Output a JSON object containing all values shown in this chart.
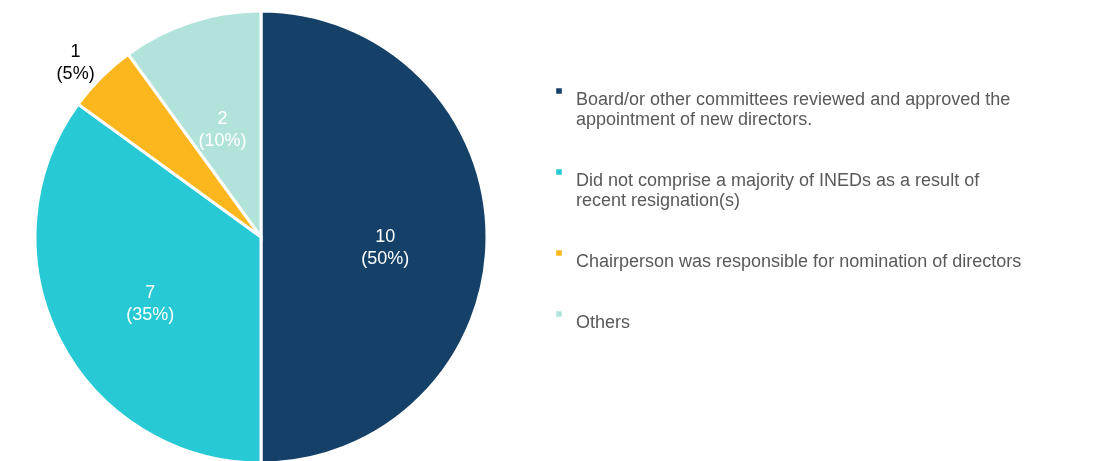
{
  "chart_data": {
    "type": "pie",
    "categories": [
      "Board/or other committees reviewed and approved the appointment of new directors.",
      "Did not comprise a majority of INEDs as a result of recent resignation(s)",
      "Chairperson was responsible for nomination of directors",
      "Others"
    ],
    "values": [
      10,
      7,
      1,
      2
    ],
    "value_labels": [
      "10\n(50%)",
      "7\n(35%)",
      "1\n(5%)",
      "2\n(10%)"
    ],
    "colors": [
      "#154169",
      "#26c9d4",
      "#fbb71d",
      "#b2e3da"
    ],
    "legend": "right"
  }
}
